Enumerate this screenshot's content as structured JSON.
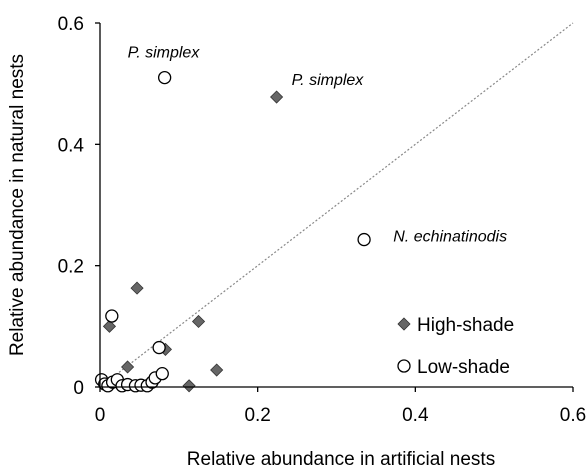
{
  "chart_data": {
    "type": "scatter",
    "title": "",
    "xlabel": "Relative abundance in artificial nests",
    "ylabel": "Relative abundance in natural nests",
    "xlim": [
      0,
      0.6
    ],
    "ylim": [
      0,
      0.6
    ],
    "xticks": [
      "0",
      "0.2",
      "0.4",
      "0.6"
    ],
    "yticks": [
      "0",
      "0.2",
      "0.4",
      "0.6"
    ],
    "grid": false,
    "legend_position": "bottom-right",
    "reference_line": {
      "style": "dotted",
      "from": [
        0,
        0
      ],
      "to": [
        0.6,
        0.6
      ],
      "color": "#888888"
    },
    "series": [
      {
        "name": "High-shade",
        "marker": "diamond",
        "color": "#666666",
        "points": [
          {
            "x": 0.012,
            "y": 0.1
          },
          {
            "x": 0.047,
            "y": 0.163
          },
          {
            "x": 0.035,
            "y": 0.033
          },
          {
            "x": 0.083,
            "y": 0.062
          },
          {
            "x": 0.125,
            "y": 0.108
          },
          {
            "x": 0.148,
            "y": 0.028
          },
          {
            "x": 0.113,
            "y": 0.002
          },
          {
            "x": 0.068,
            "y": 0.013
          },
          {
            "x": 0.224,
            "y": 0.478
          }
        ]
      },
      {
        "name": "Low-shade",
        "marker": "circle",
        "color": "#ffffff",
        "points": [
          {
            "x": 0.082,
            "y": 0.51
          },
          {
            "x": 0.335,
            "y": 0.243
          },
          {
            "x": 0.015,
            "y": 0.117
          },
          {
            "x": 0.075,
            "y": 0.065
          },
          {
            "x": 0.002,
            "y": 0.012
          },
          {
            "x": 0.006,
            "y": 0.005
          },
          {
            "x": 0.01,
            "y": 0.002
          },
          {
            "x": 0.016,
            "y": 0.008
          },
          {
            "x": 0.022,
            "y": 0.012
          },
          {
            "x": 0.028,
            "y": 0.002
          },
          {
            "x": 0.035,
            "y": 0.004
          },
          {
            "x": 0.045,
            "y": 0.002
          },
          {
            "x": 0.052,
            "y": 0.003
          },
          {
            "x": 0.06,
            "y": 0.002
          },
          {
            "x": 0.066,
            "y": 0.008
          },
          {
            "x": 0.07,
            "y": 0.015
          },
          {
            "x": 0.079,
            "y": 0.022
          }
        ]
      }
    ],
    "annotations": [
      {
        "text": "P. simplex",
        "x": 0.035,
        "y": 0.543
      },
      {
        "text": "P. simplex",
        "x": 0.243,
        "y": 0.498
      },
      {
        "text": "N. echinatinodis",
        "x": 0.372,
        "y": 0.24
      }
    ]
  }
}
